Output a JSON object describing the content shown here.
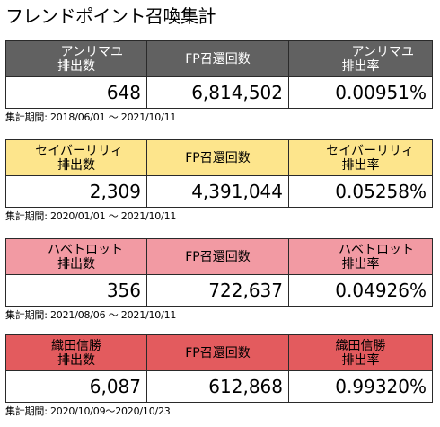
{
  "title": "フレンドポイント召喚集計",
  "colors": {
    "annirimayu_header": "#616161",
    "annirimayu_header_text": "#ffffff",
    "seibaa_header": "#fde58c",
    "hawetorotto_header": "#f29aa3",
    "oda_header": "#e35b5e"
  },
  "blocks": [
    {
      "header": [
        "アンリマユ",
        "排出数",
        "FP召還回数",
        "アンリマユ",
        "排出率"
      ],
      "count": "648",
      "fp": "6,814,502",
      "rate": "0.00951%",
      "period": "集計期間: 2018/06/01 ～ 2021/10/11"
    },
    {
      "header": [
        "セイバーリリィ",
        "排出数",
        "FP召還回数",
        "セイバーリリィ",
        "排出率"
      ],
      "count": "2,309",
      "fp": "4,391,044",
      "rate": "0.05258%",
      "period": "集計期間: 2020/01/01 ～ 2021/10/11"
    },
    {
      "header": [
        "ハベトロット",
        "排出数",
        "FP召還回数",
        "ハベトロット",
        "排出率"
      ],
      "count": "356",
      "fp": "722,637",
      "rate": "0.04926%",
      "period": "集計期間: 2021/08/06 ～ 2021/10/11"
    },
    {
      "header": [
        "織田信勝",
        "排出数",
        "FP召還回数",
        "織田信勝",
        "排出率"
      ],
      "count": "6,087",
      "fp": "612,868",
      "rate": "0.99320%",
      "period": "集計期間: 2020/10/09～2020/10/23"
    }
  ]
}
